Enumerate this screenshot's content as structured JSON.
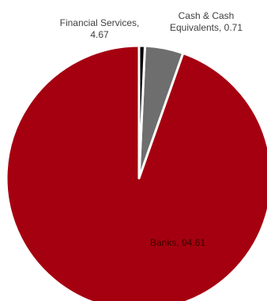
{
  "chart_data": {
    "type": "pie",
    "slices": [
      {
        "label": "Banks",
        "value": 94.61,
        "color": "#A50010"
      },
      {
        "label": "Financial Services",
        "value": 4.67,
        "color": "#6E6E6E"
      },
      {
        "label": "Cash & Cash Equivalents",
        "value": 0.71,
        "color": "#000000"
      }
    ],
    "data_labels": [
      {
        "lines": [
          "Banks, 94.61"
        ]
      },
      {
        "lines": [
          "Financial Services,",
          "4.67"
        ]
      },
      {
        "lines": [
          "Cash & Cash",
          "Equivalents, 0.71"
        ]
      }
    ],
    "title": "",
    "legend": "none",
    "direction": "counterclockwise from top"
  }
}
